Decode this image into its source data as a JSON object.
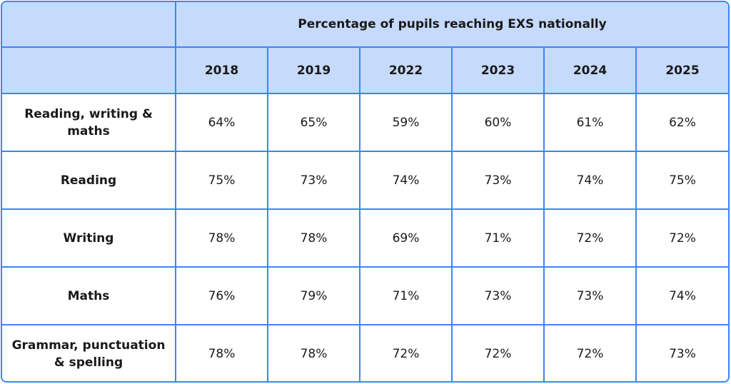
{
  "chart_data": {
    "type": "table",
    "title": "Percentage of pupils reaching EXS nationally",
    "columns": [
      "2018",
      "2019",
      "2022",
      "2023",
      "2024",
      "2025"
    ],
    "rows": [
      {
        "label": "Reading, writing & maths",
        "values": [
          "64%",
          "65%",
          "59%",
          "60%",
          "61%",
          "62%"
        ]
      },
      {
        "label": "Reading",
        "values": [
          "75%",
          "73%",
          "74%",
          "73%",
          "74%",
          "75%"
        ]
      },
      {
        "label": "Writing",
        "values": [
          "78%",
          "78%",
          "69%",
          "71%",
          "72%",
          "72%"
        ]
      },
      {
        "label": "Maths",
        "values": [
          "76%",
          "79%",
          "71%",
          "73%",
          "73%",
          "74%"
        ]
      },
      {
        "label": "Grammar, punctuation & spelling",
        "values": [
          "78%",
          "78%",
          "72%",
          "72%",
          "72%",
          "73%"
        ]
      }
    ]
  },
  "colors": {
    "header_bg": "#c6dafb",
    "border": "#3d85f5"
  }
}
